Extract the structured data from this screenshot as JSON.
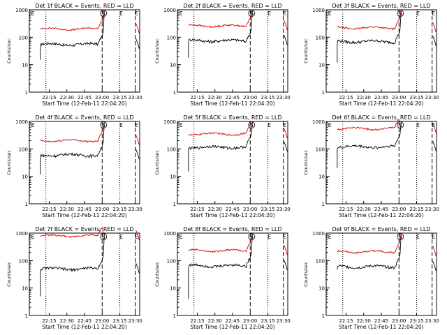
{
  "figure": {
    "x_title": "Start Time (12-Feb-11 22:04:20)",
    "y_label": "Counts/sec",
    "x_ticks": [
      "22:15",
      "22:30",
      "22:45",
      "23:00",
      "23:15",
      "23:30"
    ],
    "y_ticks": [
      "1000",
      "100",
      "10",
      "1"
    ],
    "marker_labels": [
      "E",
      "S",
      "E",
      "E"
    ],
    "colors": {
      "events": "#000000",
      "lld": "#dd0000",
      "axis": "#000000"
    }
  },
  "chart_data": [
    {
      "type": "line",
      "title": "Det 1f BLACK = Events, RED = LLD",
      "xlabel": "Start Time (12-Feb-11 22:04:20)",
      "ylabel": "Counts/sec",
      "yscale": "log",
      "ylim": [
        1,
        1000
      ],
      "series": [
        {
          "name": "Events",
          "color": "#000000",
          "level": 55,
          "start": 15
        },
        {
          "name": "LLD",
          "color": "#dd0000",
          "level": 200
        }
      ]
    },
    {
      "type": "line",
      "title": "Det 2f BLACK = Events, RED = LLD",
      "xlabel": "Start Time (12-Feb-11 22:04:20)",
      "ylabel": "Counts/sec",
      "yscale": "log",
      "ylim": [
        1,
        1000
      ],
      "series": [
        {
          "name": "Events",
          "color": "#000000",
          "level": 75,
          "start": 18
        },
        {
          "name": "LLD",
          "color": "#dd0000",
          "level": 260
        }
      ]
    },
    {
      "type": "line",
      "title": "Det 3f BLACK = Events, RED = LLD",
      "xlabel": "Start Time (12-Feb-11 22:04:20)",
      "ylabel": "Counts/sec",
      "yscale": "log",
      "ylim": [
        1,
        1000
      ],
      "series": [
        {
          "name": "Events",
          "color": "#000000",
          "level": 70,
          "start": 12
        },
        {
          "name": "LLD",
          "color": "#dd0000",
          "level": 220
        }
      ]
    },
    {
      "type": "line",
      "title": "Det 4f BLACK = Events, RED = LLD",
      "xlabel": "Start Time (12-Feb-11 22:04:20)",
      "ylabel": "Counts/sec",
      "yscale": "log",
      "ylim": [
        1,
        1000
      ],
      "series": [
        {
          "name": "Events",
          "color": "#000000",
          "level": 60,
          "start": 12
        },
        {
          "name": "LLD",
          "color": "#dd0000",
          "level": 200
        }
      ]
    },
    {
      "type": "line",
      "title": "Det 5f BLACK = Events, RED = LLD",
      "xlabel": "Start Time (12-Feb-11 22:04:20)",
      "ylabel": "Counts/sec",
      "yscale": "log",
      "ylim": [
        1,
        1000
      ],
      "series": [
        {
          "name": "Events",
          "color": "#000000",
          "level": 115,
          "start": 15
        },
        {
          "name": "LLD",
          "color": "#dd0000",
          "level": 350
        }
      ]
    },
    {
      "type": "line",
      "title": "Det 6f BLACK = Events, RED = LLD",
      "xlabel": "Start Time (12-Feb-11 22:04:20)",
      "ylabel": "Counts/sec",
      "yscale": "log",
      "ylim": [
        1,
        1000
      ],
      "series": [
        {
          "name": "Events",
          "color": "#000000",
          "level": 120,
          "start": 20
        },
        {
          "name": "LLD",
          "color": "#dd0000",
          "level": 550
        }
      ]
    },
    {
      "type": "line",
      "title": "Det 7f BLACK = Events, RED = LLD",
      "xlabel": "Start Time (12-Feb-11 22:04:20)",
      "ylabel": "Counts/sec",
      "yscale": "log",
      "ylim": [
        1,
        1000
      ],
      "series": [
        {
          "name": "Events",
          "color": "#000000",
          "level": 50,
          "start": 5
        },
        {
          "name": "LLD",
          "color": "#dd0000",
          "level": 800
        }
      ]
    },
    {
      "type": "line",
      "title": "Det 8f BLACK = Events, RED = LLD",
      "xlabel": "Start Time (12-Feb-11 22:04:20)",
      "ylabel": "Counts/sec",
      "yscale": "log",
      "ylim": [
        1,
        1000
      ],
      "series": [
        {
          "name": "Events",
          "color": "#000000",
          "level": 65,
          "start": 4
        },
        {
          "name": "LLD",
          "color": "#dd0000",
          "level": 230
        }
      ]
    },
    {
      "type": "line",
      "title": "Det 9f BLACK = Events, RED = LLD",
      "xlabel": "Start Time (12-Feb-11 22:04:20)",
      "ylabel": "Counts/sec",
      "yscale": "log",
      "ylim": [
        1,
        1000
      ],
      "series": [
        {
          "name": "Events",
          "color": "#000000",
          "level": 60,
          "start": 50
        },
        {
          "name": "LLD",
          "color": "#dd0000",
          "level": 210
        }
      ]
    }
  ]
}
